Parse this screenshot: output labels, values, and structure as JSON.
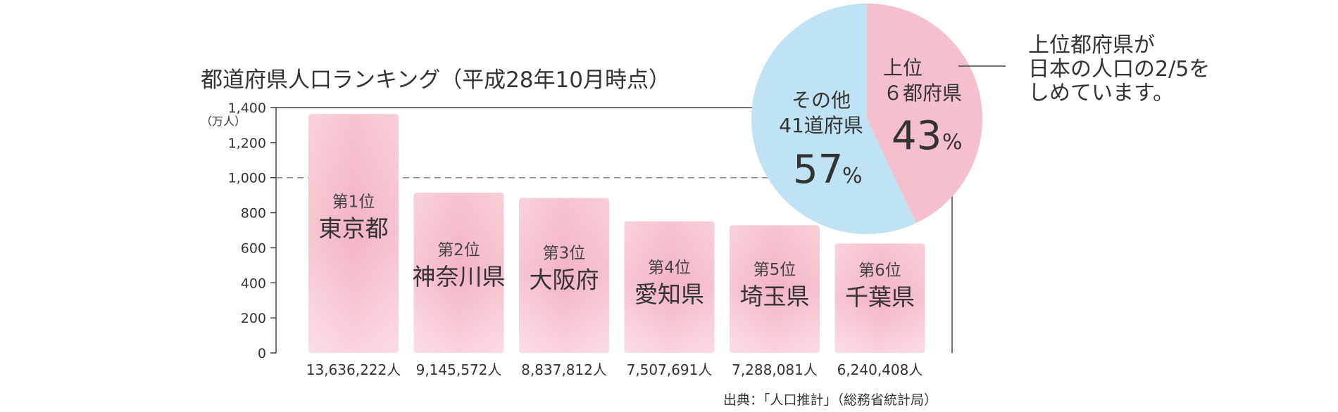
{
  "chart_data": [
    {
      "type": "bar",
      "title": "都道府県人口ランキング（平成28年10月時点）",
      "unit_label": "（万人）",
      "ylim": [
        0,
        1400
      ],
      "y_ticks": [
        "1,400",
        "1,200",
        "1,000",
        "800",
        "600",
        "400",
        "200",
        "0"
      ],
      "y_tick_values": [
        1400,
        1200,
        1000,
        800,
        600,
        400,
        200,
        0
      ],
      "reference_line": 1000,
      "categories": [
        "東京都",
        "神奈川県",
        "大阪府",
        "愛知県",
        "埼玉県",
        "千葉県"
      ],
      "ranks": [
        "第1位",
        "第2位",
        "第3位",
        "第4位",
        "第5位",
        "第6位"
      ],
      "values": [
        1363.6222,
        914.5572,
        883.7812,
        750.7691,
        728.8081,
        624.0408
      ],
      "population_labels": [
        "13,636,222人",
        "9,145,572人",
        "8,837,812人",
        "7,507,691人",
        "7,288,081人",
        "6,240,408人"
      ],
      "source": "出典：「人口推計」（総務省統計局）",
      "colors": {
        "bar": "#f4b8c8",
        "bar_light": "#fbdde5",
        "axis": "#444444"
      }
    },
    {
      "type": "pie",
      "slices": [
        {
          "label_line1": "上位",
          "label_line2": "６都府県",
          "value": 43,
          "pct": "43",
          "color": "#f6bfcd"
        },
        {
          "label_line1": "その他",
          "label_line2": "41道府県",
          "value": 57,
          "pct": "57",
          "color": "#bfe3f4"
        }
      ],
      "pct_sign": "%",
      "annotation": [
        "上位都府県が",
        "日本の人口の2/5を",
        "しめています。"
      ]
    }
  ]
}
